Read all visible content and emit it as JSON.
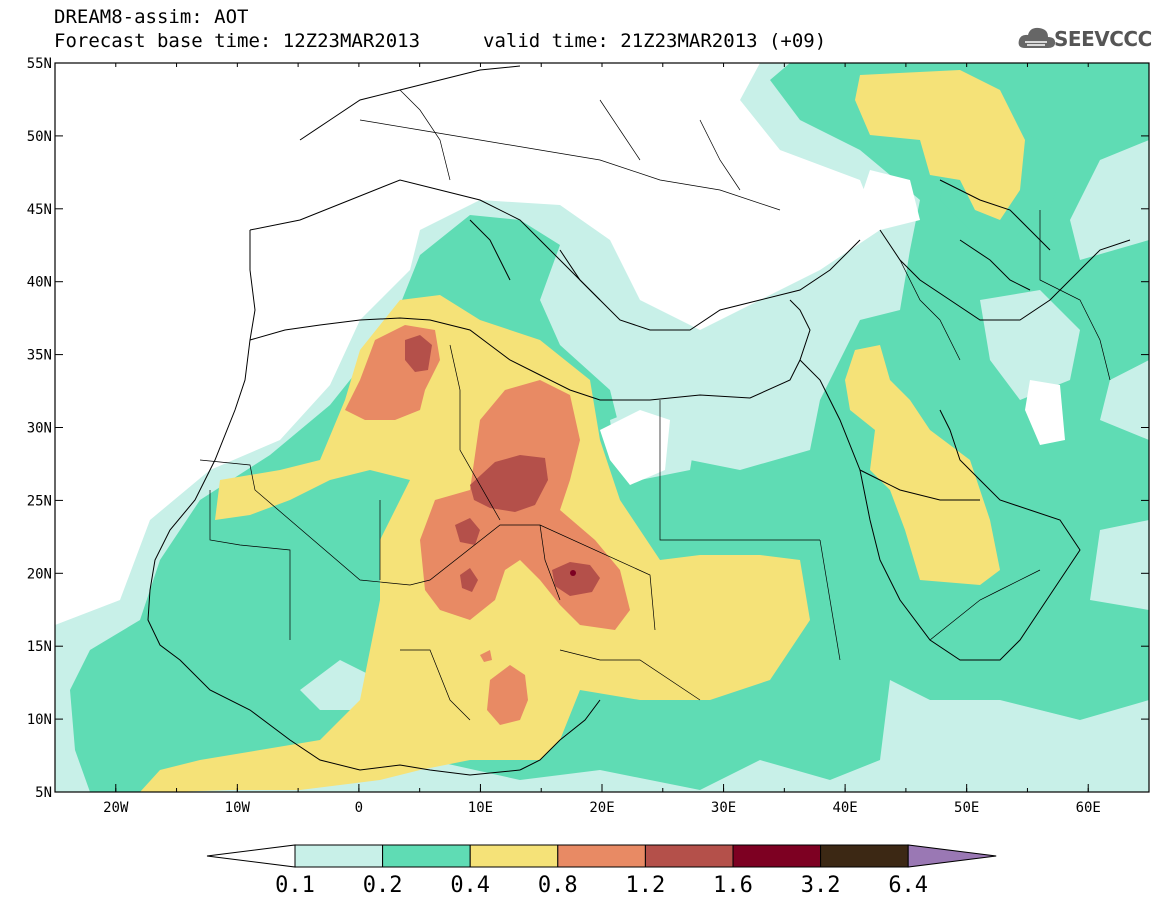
{
  "header": {
    "title": "DREAM8-assim: AOT",
    "base_time": "Forecast base time: 12Z23MAR2013",
    "valid_time": "valid time: 21Z23MAR2013 (+09)"
  },
  "logo": {
    "icon": "cloud-icon",
    "text": "SEEVCCC"
  },
  "axes": {
    "x_ticks": [
      "20W",
      "10W",
      "0",
      "10E",
      "20E",
      "30E",
      "40E",
      "50E",
      "60E"
    ],
    "y_ticks": [
      "55N",
      "50N",
      "45N",
      "40N",
      "35N",
      "30N",
      "25N",
      "20N",
      "15N",
      "10N",
      "5N"
    ],
    "lon_range": [
      -25,
      65
    ],
    "lat_range": [
      5,
      55
    ]
  },
  "colorbar": {
    "labels": [
      "0.1",
      "0.2",
      "0.4",
      "0.8",
      "1.2",
      "1.6",
      "3.2",
      "6.4"
    ],
    "colors": [
      "#c8f0e8",
      "#5fdcb4",
      "#f5e278",
      "#e88a64",
      "#b4504a",
      "#7d0022",
      "#3c2814",
      "#9a78b4"
    ]
  },
  "levels_colors": {
    "0.1": "#c8f0e8",
    "0.2": "#5fdcb4",
    "0.4": "#f5e278",
    "0.8": "#e88a64",
    "1.2": "#b4504a",
    "1.6": "#7d0022"
  }
}
